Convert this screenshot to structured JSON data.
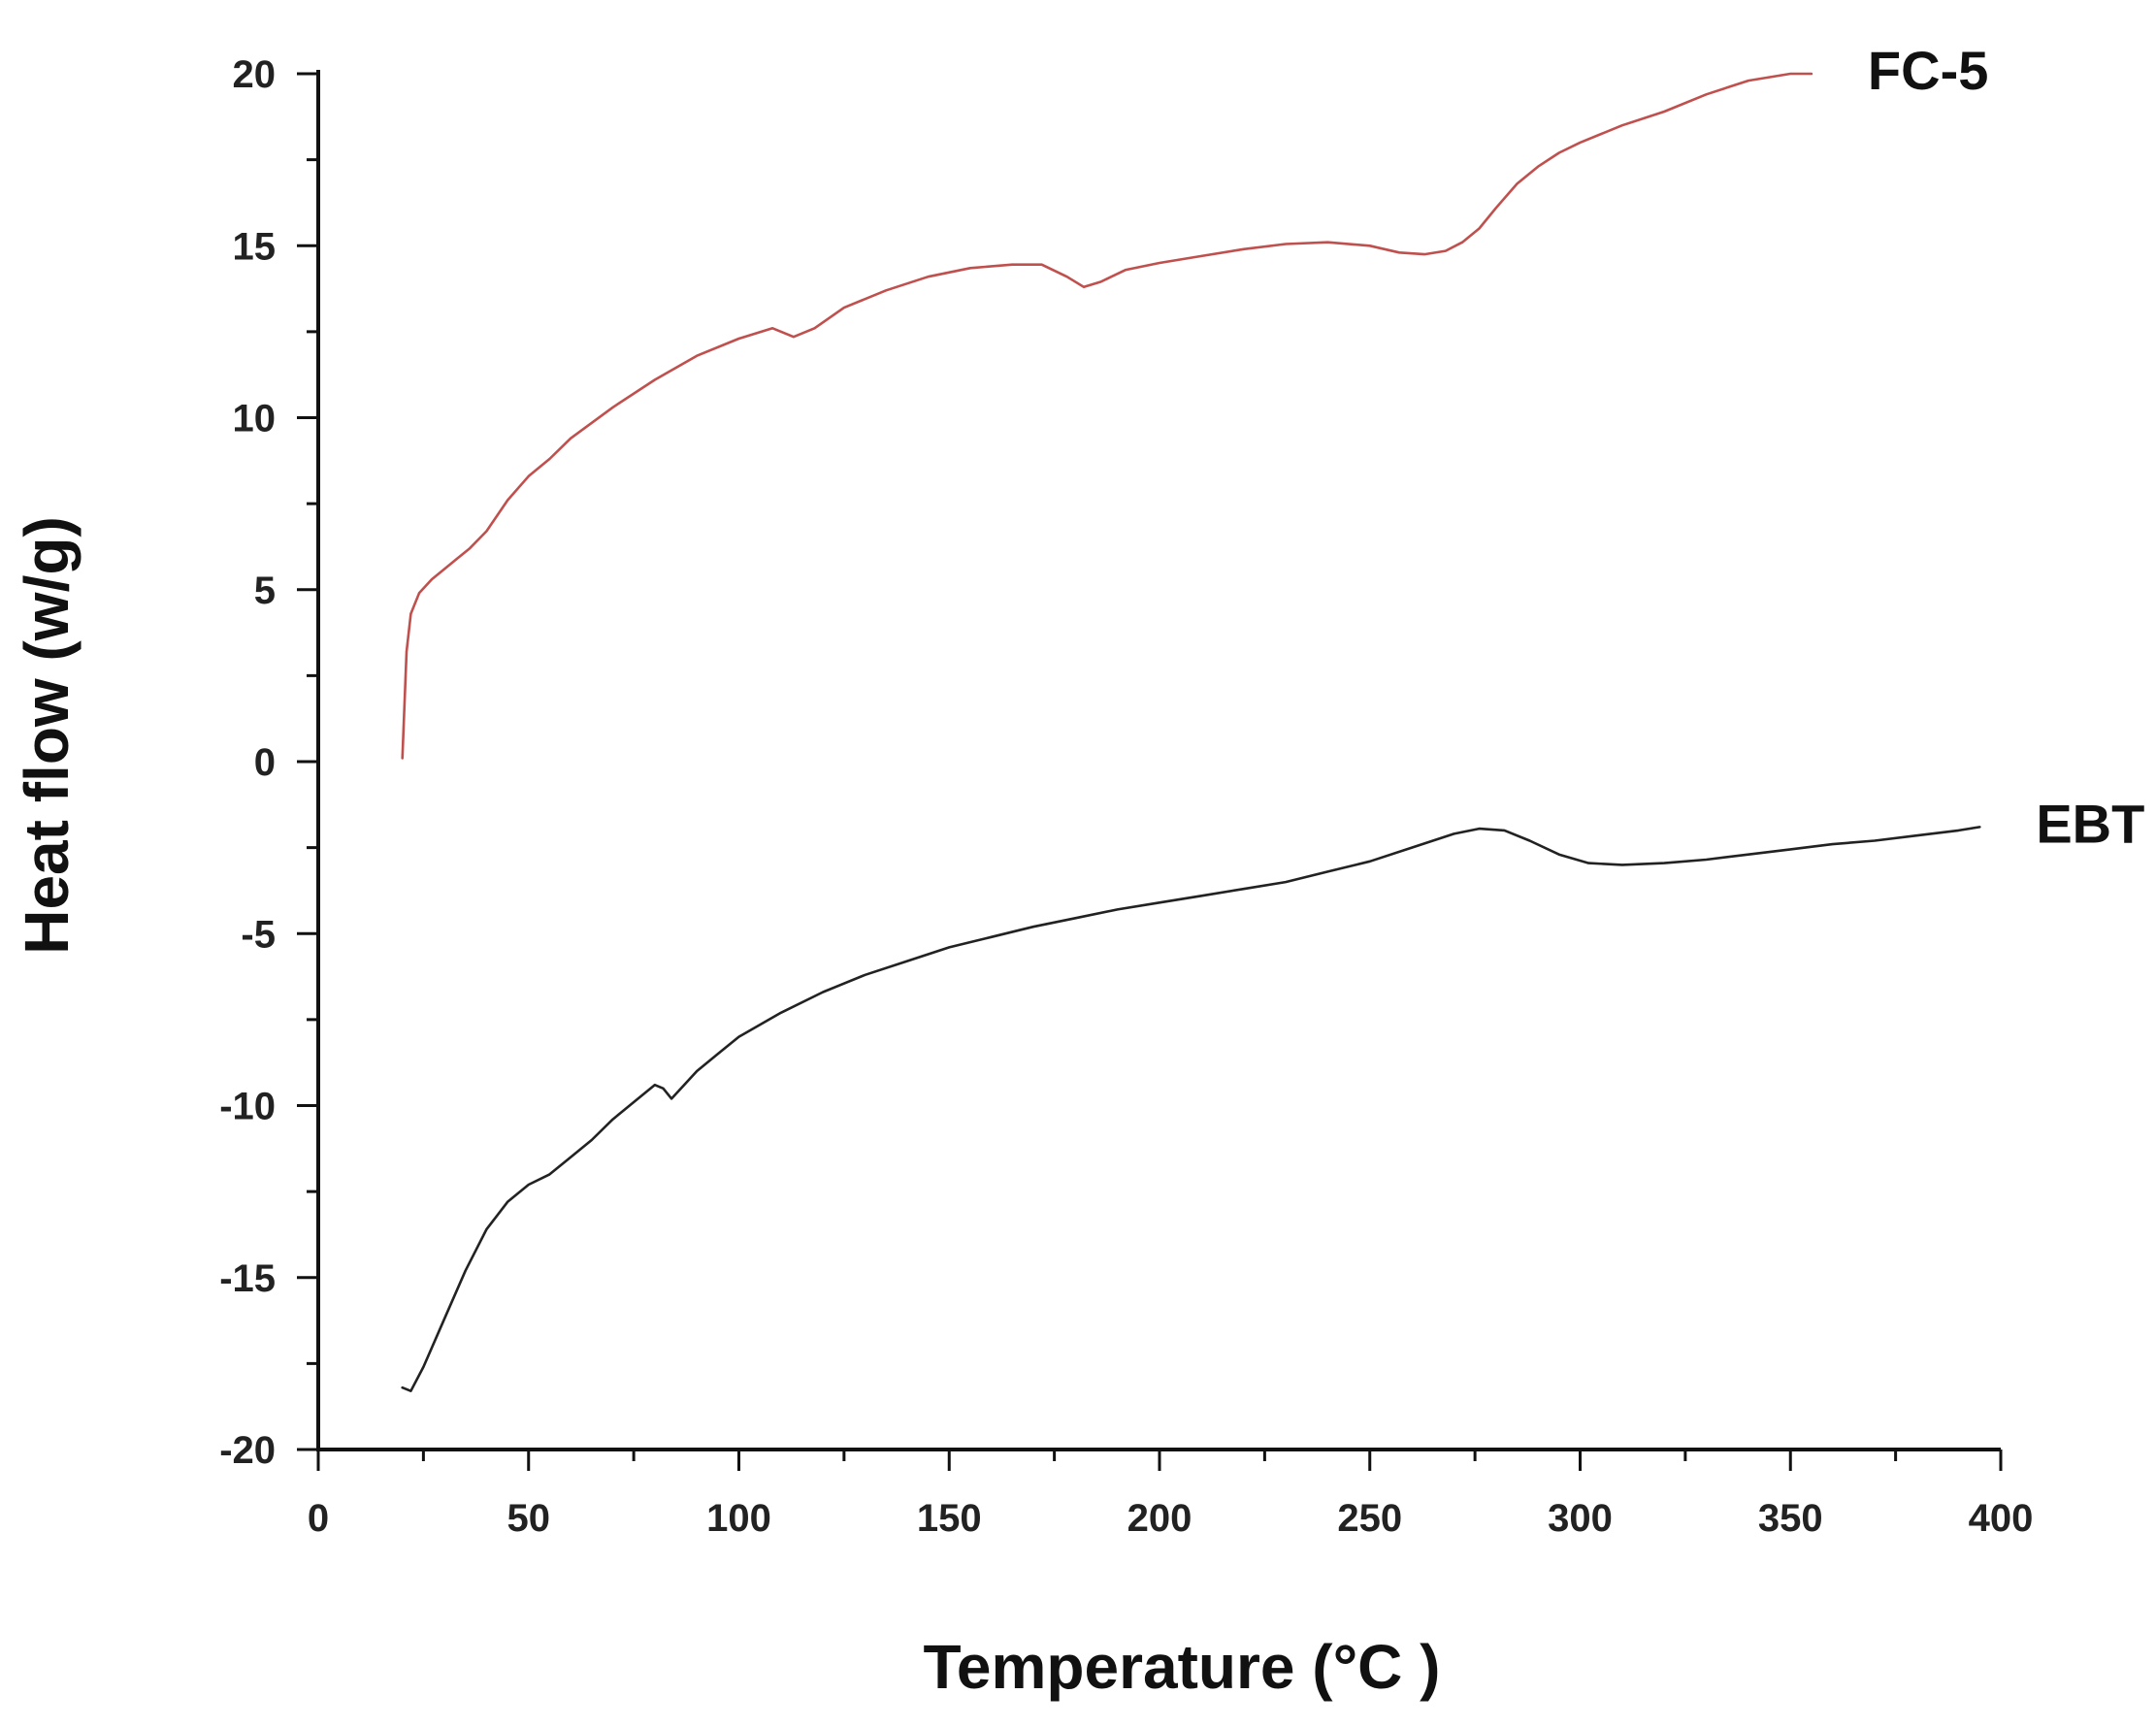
{
  "chart_data": {
    "type": "line",
    "xlabel": "Temperature (°C )",
    "ylabel": "Heat flow (w/g)",
    "xlim": [
      0,
      400
    ],
    "ylim": [
      -20,
      20
    ],
    "x_ticks": [
      0,
      50,
      100,
      150,
      200,
      250,
      300,
      350,
      400
    ],
    "y_ticks": [
      -20,
      -15,
      -10,
      -5,
      0,
      5,
      10,
      15,
      20
    ],
    "grid": false,
    "legend": "none",
    "series": [
      {
        "name": "FC-5",
        "color": "#c0504d",
        "x": [
          20,
          21,
          22,
          24,
          27,
          30,
          33,
          36,
          40,
          45,
          50,
          55,
          60,
          70,
          80,
          90,
          100,
          108,
          113,
          118,
          125,
          135,
          145,
          155,
          165,
          172,
          178,
          182,
          186,
          192,
          200,
          210,
          220,
          230,
          240,
          250,
          257,
          263,
          268,
          272,
          276,
          280,
          285,
          290,
          295,
          300,
          310,
          320,
          330,
          340,
          350,
          355
        ],
        "values": [
          0.1,
          3.2,
          4.3,
          4.9,
          5.3,
          5.6,
          5.9,
          6.2,
          6.7,
          7.6,
          8.3,
          8.8,
          9.4,
          10.3,
          11.1,
          11.8,
          12.3,
          12.6,
          12.35,
          12.6,
          13.2,
          13.7,
          14.1,
          14.35,
          14.45,
          14.45,
          14.1,
          13.8,
          13.95,
          14.3,
          14.5,
          14.7,
          14.9,
          15.05,
          15.1,
          15.0,
          14.8,
          14.75,
          14.85,
          15.1,
          15.5,
          16.1,
          16.8,
          17.3,
          17.7,
          18.0,
          18.5,
          18.9,
          19.4,
          19.8,
          20.0,
          20.0
        ]
      },
      {
        "name": "EBT",
        "color": "#222222",
        "x": [
          20,
          22,
          25,
          30,
          35,
          40,
          45,
          50,
          55,
          60,
          65,
          70,
          75,
          80,
          82,
          84,
          87,
          90,
          95,
          100,
          110,
          120,
          130,
          140,
          150,
          160,
          170,
          180,
          190,
          200,
          210,
          220,
          230,
          240,
          250,
          260,
          270,
          276,
          282,
          288,
          295,
          302,
          310,
          320,
          330,
          340,
          350,
          360,
          370,
          380,
          390,
          395
        ],
        "values": [
          -18.2,
          -18.3,
          -17.6,
          -16.2,
          -14.8,
          -13.6,
          -12.8,
          -12.3,
          -12.0,
          -11.5,
          -11.0,
          -10.4,
          -9.9,
          -9.4,
          -9.5,
          -9.8,
          -9.4,
          -9.0,
          -8.5,
          -8.0,
          -7.3,
          -6.7,
          -6.2,
          -5.8,
          -5.4,
          -5.1,
          -4.8,
          -4.55,
          -4.3,
          -4.1,
          -3.9,
          -3.7,
          -3.5,
          -3.2,
          -2.9,
          -2.5,
          -2.1,
          -1.95,
          -2.0,
          -2.3,
          -2.7,
          -2.95,
          -3.0,
          -2.95,
          -2.85,
          -2.7,
          -2.55,
          -2.4,
          -2.3,
          -2.15,
          -2.0,
          -1.9
        ]
      }
    ]
  }
}
